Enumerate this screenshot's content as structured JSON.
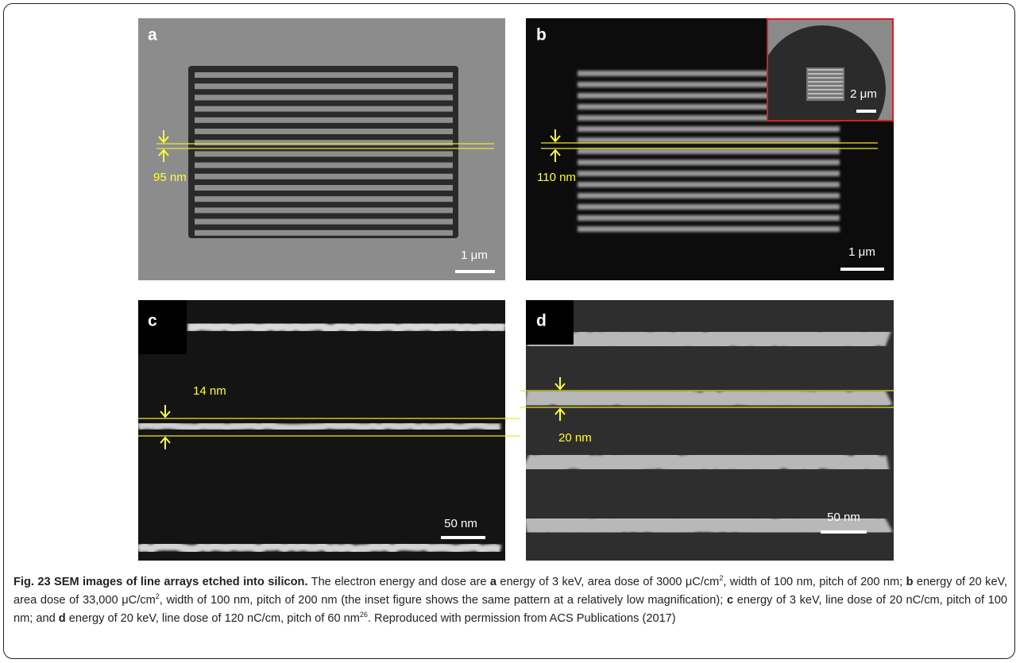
{
  "panels": [
    {
      "label": "a",
      "measurement": "95 nm",
      "scale_bar": "1 μm"
    },
    {
      "label": "b",
      "measurement": "110 nm",
      "scale_bar": "1 μm",
      "inset_scale_bar": "2 μm"
    },
    {
      "label": "c",
      "measurement": "14 nm",
      "scale_bar": "50 nm"
    },
    {
      "label": "d",
      "measurement": "20 nm",
      "scale_bar": "50 nm"
    }
  ],
  "caption": {
    "runs": [
      {
        "text": "Fig. 23 SEM images of line arrays etched into silicon.",
        "bold": true
      },
      {
        "text": " The electron energy and dose are "
      },
      {
        "text": "a",
        "bold": true
      },
      {
        "text": " energy of 3 keV, area dose of 3000 μC/cm"
      },
      {
        "text": "2",
        "sup": true
      },
      {
        "text": ", width of 100 nm, pitch of 200 nm; "
      },
      {
        "text": "b",
        "bold": true
      },
      {
        "text": " energy of 20 keV, area dose of 33,000 μC/cm"
      },
      {
        "text": "2",
        "sup": true
      },
      {
        "text": ", width of 100 nm, pitch of 200 nm (the inset figure shows the same pattern at a relatively low magnification); "
      },
      {
        "text": "c",
        "bold": true
      },
      {
        "text": " energy of 3 keV, line dose of 20 nC/cm, pitch of 100 nm; and "
      },
      {
        "text": "d",
        "bold": true
      },
      {
        "text": " energy of 20 keV, line dose of 120 nC/cm, pitch of 60 nm"
      },
      {
        "text": "26",
        "sup": true
      },
      {
        "text": ". Reproduced with permission from ACS Publications (2017)"
      }
    ]
  }
}
